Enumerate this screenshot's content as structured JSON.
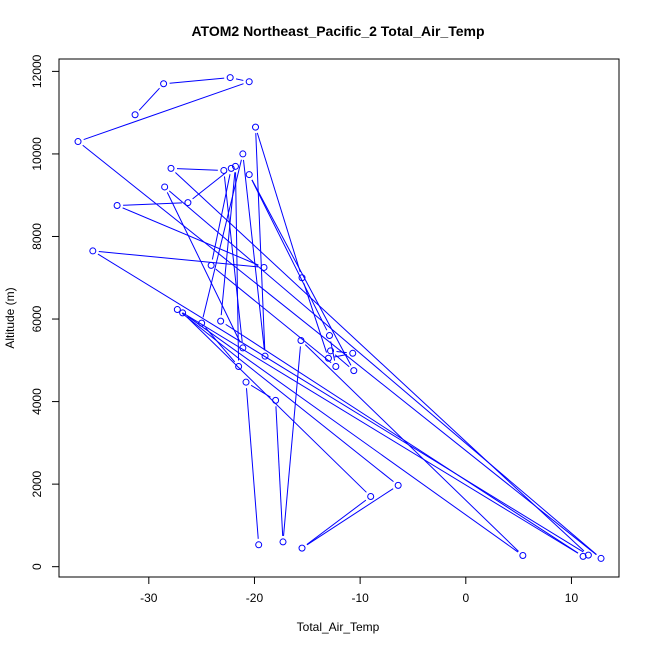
{
  "chart_data": {
    "type": "line",
    "title": "ATOM2 Northeast_Pacific_2 Total_Air_Temp",
    "xlabel": "Total_Air_Temp",
    "ylabel": "Altitude (m)",
    "xlim": [
      -38.5,
      14.5
    ],
    "ylim": [
      -250,
      12300
    ],
    "xticks": [
      -30,
      -20,
      -10,
      0,
      10
    ],
    "yticks": [
      0,
      2000,
      4000,
      6000,
      8000,
      10000,
      12000
    ],
    "grid": false,
    "series": [
      {
        "color": "#0000ff",
        "marker": "open-circle",
        "points": [
          {
            "x": -31.3,
            "y": 10950
          },
          {
            "x": -28.6,
            "y": 11700
          },
          {
            "x": -22.3,
            "y": 11850
          },
          {
            "x": -20.5,
            "y": 11750
          },
          {
            "x": -36.7,
            "y": 10300
          },
          {
            "x": 12.8,
            "y": 200
          },
          {
            "x": -28.5,
            "y": 9200
          },
          {
            "x": -21.1,
            "y": 5300
          },
          {
            "x": -22.9,
            "y": 9600
          },
          {
            "x": -27.9,
            "y": 9650
          },
          {
            "x": 11.6,
            "y": 280
          },
          {
            "x": -35.3,
            "y": 7650
          },
          {
            "x": -19.1,
            "y": 7250
          },
          {
            "x": -33.0,
            "y": 8750
          },
          {
            "x": -26.3,
            "y": 8820
          },
          {
            "x": -22.2,
            "y": 9650
          },
          {
            "x": -24.1,
            "y": 7300
          },
          {
            "x": -12.3,
            "y": 4850
          },
          {
            "x": -12.9,
            "y": 5600
          },
          {
            "x": -20.5,
            "y": 9500
          },
          {
            "x": -10.6,
            "y": 4750
          },
          {
            "x": -12.8,
            "y": 5230
          },
          {
            "x": -10.7,
            "y": 5170
          },
          {
            "x": -13.0,
            "y": 5050
          },
          {
            "x": -15.5,
            "y": 7000
          },
          {
            "x": -19.9,
            "y": 10650
          },
          {
            "x": -19.0,
            "y": 5100
          },
          {
            "x": -21.1,
            "y": 10000
          },
          {
            "x": -25.0,
            "y": 5900
          },
          {
            "x": -21.5,
            "y": 4850
          },
          {
            "x": -21.8,
            "y": 9700
          },
          {
            "x": -23.2,
            "y": 5950
          },
          {
            "x": 11.1,
            "y": 250
          },
          {
            "x": -27.3,
            "y": 6230
          },
          {
            "x": -6.4,
            "y": 1970
          },
          {
            "x": -15.5,
            "y": 450
          },
          {
            "x": -9.0,
            "y": 1700
          },
          {
            "x": -26.8,
            "y": 6150
          },
          {
            "x": 5.4,
            "y": 270
          },
          {
            "x": -15.6,
            "y": 5480
          },
          {
            "x": -17.3,
            "y": 600
          },
          {
            "x": -18.0,
            "y": 4030
          },
          {
            "x": -20.8,
            "y": 4470
          },
          {
            "x": -19.6,
            "y": 530
          }
        ]
      }
    ]
  }
}
